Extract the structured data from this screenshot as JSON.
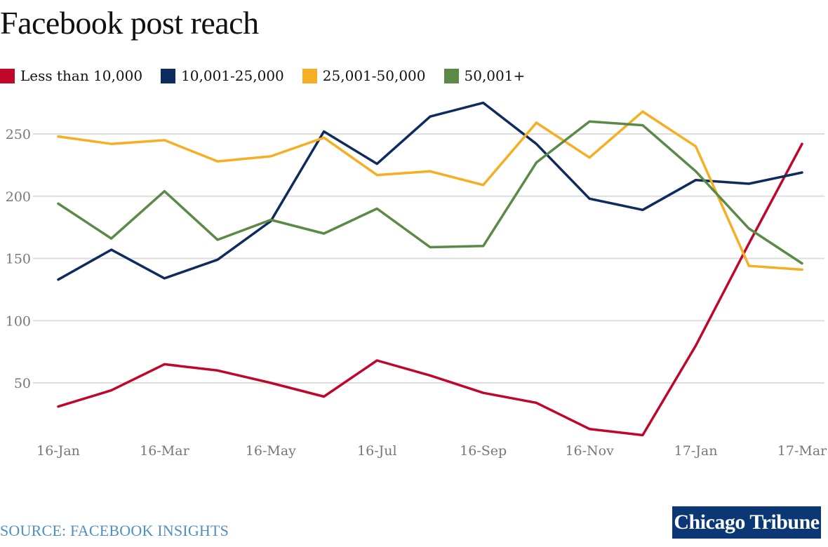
{
  "chart_data": {
    "type": "line",
    "title": "Facebook post reach",
    "categories": [
      "16-Jan",
      "16-Feb",
      "16-Mar",
      "16-Apr",
      "16-May",
      "16-Jun",
      "16-Jul",
      "16-Aug",
      "16-Sep",
      "16-Oct",
      "16-Nov",
      "16-Dec",
      "17-Jan",
      "17-Feb",
      "17-Mar"
    ],
    "xticks": [
      "16-Jan",
      "16-Mar",
      "16-May",
      "16-Jul",
      "16-Sep",
      "16-Nov",
      "17-Jan",
      "17-Mar"
    ],
    "yticks": [
      50,
      100,
      150,
      200,
      250
    ],
    "ylim": [
      0,
      280
    ],
    "grid": true,
    "legend_position": "top-left",
    "series": [
      {
        "name": "Less than 10,000",
        "color": "#c0072b",
        "values": [
          31,
          44,
          65,
          60,
          50,
          39,
          68,
          56,
          42,
          34,
          13,
          8,
          80,
          162,
          242
        ]
      },
      {
        "name": "10,001-25,000",
        "color": "#0d2b5e",
        "values": [
          133,
          157,
          134,
          149,
          180,
          252,
          226,
          264,
          275,
          242,
          198,
          189,
          213,
          210,
          219
        ]
      },
      {
        "name": "25,001-50,000",
        "color": "#f6ae24",
        "values": [
          248,
          242,
          245,
          228,
          232,
          247,
          217,
          220,
          209,
          259,
          231,
          268,
          240,
          144,
          141
        ]
      },
      {
        "name": "50,001+",
        "color": "#5a8a45",
        "values": [
          194,
          166,
          204,
          165,
          181,
          170,
          190,
          159,
          160,
          227,
          260,
          257,
          220,
          174,
          146
        ]
      }
    ]
  },
  "source": "SOURCE: FACEBOOK INSIGHTS",
  "logo_text": "Chicago Tribune"
}
